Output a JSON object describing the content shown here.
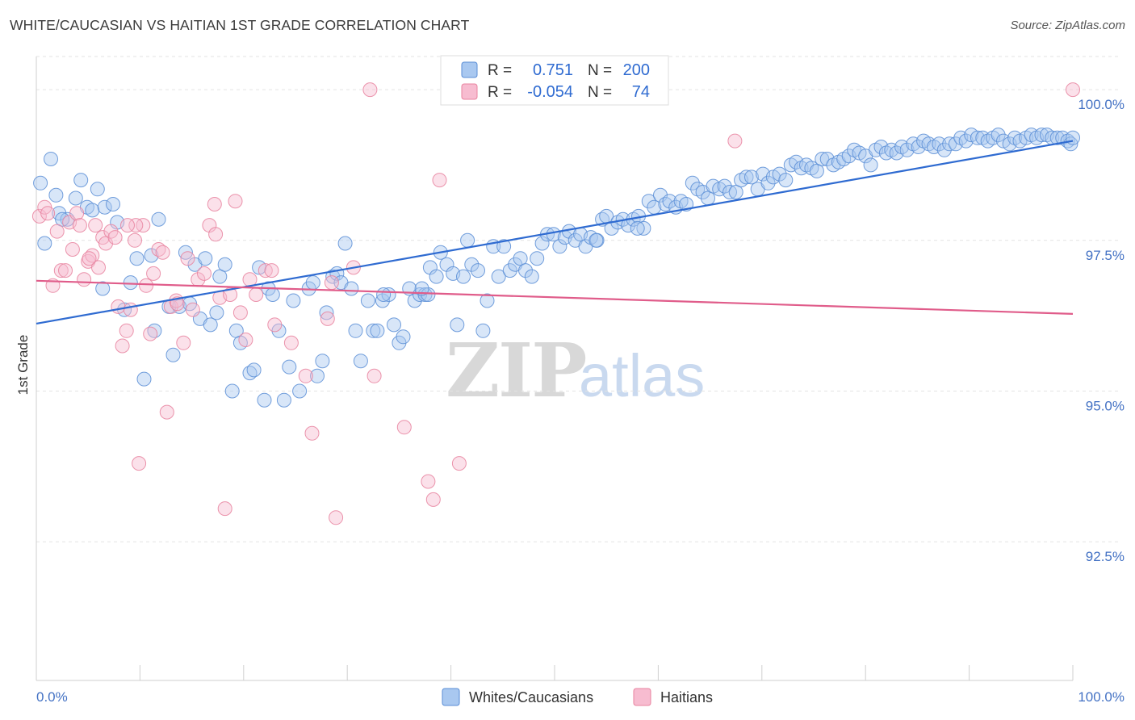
{
  "header": {
    "title": "WHITE/CAUCASIAN VS HAITIAN 1ST GRADE CORRELATION CHART",
    "source": "Source: ZipAtlas.com"
  },
  "watermark": {
    "zip": "ZIP",
    "atlas": "atlas"
  },
  "legend": {
    "rows": [
      {
        "r_label": "R =",
        "r_value": "0.751",
        "n_label": "N =",
        "n_value": "200"
      },
      {
        "r_label": "R =",
        "r_value": "-0.054",
        "n_label": "N =",
        "n_value": "74"
      }
    ]
  },
  "bottom_legend": {
    "series1": "Whites/Caucasians",
    "series2": "Haitians"
  },
  "chart_data": {
    "type": "scatter",
    "title": "WHITE/CAUCASIAN VS HAITIAN 1ST GRADE CORRELATION CHART",
    "xlabel": "",
    "ylabel": "1st Grade",
    "xlim": [
      0,
      100
    ],
    "ylim": [
      90.2,
      100.55
    ],
    "x_tick_labels": [
      "0.0%",
      "100.0%"
    ],
    "y_ticks": [
      92.5,
      95.0,
      97.5,
      100.0
    ],
    "y_tick_labels": [
      "92.5%",
      "95.0%",
      "97.5%",
      "100.0%"
    ],
    "grid": true,
    "legend_placement": "top-center",
    "colors": {
      "white_fill": "#a9c8f0",
      "white_stroke": "#5a8ed6",
      "white_line": "#2f6bd1",
      "haitian_fill": "#f7bcd0",
      "haitian_stroke": "#e8839f",
      "haitian_line": "#e05c8a"
    },
    "series": [
      {
        "name": "Whites/Caucasians",
        "r": 0.751,
        "n": 200,
        "trend": {
          "x": [
            0,
            100
          ],
          "y": [
            96.12,
            99.15
          ]
        },
        "points": [
          [
            0.4,
            98.45
          ],
          [
            1.4,
            98.85
          ],
          [
            1.9,
            98.25
          ],
          [
            2.2,
            97.95
          ],
          [
            3.0,
            97.85
          ],
          [
            3.8,
            98.2
          ],
          [
            4.3,
            98.5
          ],
          [
            4.9,
            98.05
          ],
          [
            5.4,
            98.0
          ],
          [
            5.9,
            98.35
          ],
          [
            0.8,
            97.45
          ],
          [
            2.5,
            97.85
          ],
          [
            6.6,
            98.05
          ],
          [
            7.4,
            98.1
          ],
          [
            7.8,
            97.8
          ],
          [
            11.8,
            97.85
          ],
          [
            6.4,
            96.7
          ],
          [
            8.5,
            96.35
          ],
          [
            9.1,
            96.8
          ],
          [
            9.7,
            97.2
          ],
          [
            10.4,
            95.2
          ],
          [
            11.1,
            97.25
          ],
          [
            11.4,
            96.0
          ],
          [
            12.8,
            96.4
          ],
          [
            13.2,
            95.6
          ],
          [
            13.8,
            96.4
          ],
          [
            14.4,
            97.3
          ],
          [
            14.8,
            96.45
          ],
          [
            15.3,
            97.1
          ],
          [
            15.8,
            96.2
          ],
          [
            16.3,
            97.2
          ],
          [
            16.8,
            96.1
          ],
          [
            17.4,
            96.3
          ],
          [
            17.7,
            96.9
          ],
          [
            18.2,
            97.1
          ],
          [
            18.9,
            95.0
          ],
          [
            19.3,
            96.0
          ],
          [
            19.7,
            95.8
          ],
          [
            20.6,
            95.3
          ],
          [
            21.0,
            95.35
          ],
          [
            21.5,
            97.05
          ],
          [
            22.0,
            94.85
          ],
          [
            22.4,
            96.7
          ],
          [
            22.8,
            96.6
          ],
          [
            23.4,
            96.0
          ],
          [
            23.9,
            94.85
          ],
          [
            24.4,
            95.4
          ],
          [
            24.8,
            96.5
          ],
          [
            25.4,
            95.0
          ],
          [
            26.3,
            96.7
          ],
          [
            26.7,
            96.8
          ],
          [
            27.1,
            95.25
          ],
          [
            27.6,
            95.5
          ],
          [
            28.0,
            96.3
          ],
          [
            28.6,
            96.9
          ],
          [
            29.0,
            96.95
          ],
          [
            29.4,
            96.8
          ],
          [
            29.8,
            97.45
          ],
          [
            30.4,
            96.7
          ],
          [
            30.8,
            96.0
          ],
          [
            31.3,
            95.5
          ],
          [
            32.0,
            96.5
          ],
          [
            32.5,
            96.0
          ],
          [
            32.9,
            96.0
          ],
          [
            33.4,
            96.5
          ],
          [
            34.0,
            96.6
          ],
          [
            34.5,
            96.1
          ],
          [
            35.0,
            95.8
          ],
          [
            35.4,
            95.9
          ],
          [
            36.0,
            96.7
          ],
          [
            36.5,
            96.5
          ],
          [
            37.0,
            96.6
          ],
          [
            37.5,
            96.6
          ],
          [
            38.0,
            97.05
          ],
          [
            38.6,
            96.9
          ],
          [
            39.0,
            97.3
          ],
          [
            39.6,
            97.1
          ],
          [
            40.2,
            96.95
          ],
          [
            40.6,
            96.1
          ],
          [
            41.2,
            96.9
          ],
          [
            41.6,
            97.5
          ],
          [
            42.0,
            97.1
          ],
          [
            42.6,
            97.0
          ],
          [
            43.1,
            96.0
          ],
          [
            43.5,
            96.5
          ],
          [
            44.1,
            97.4
          ],
          [
            44.6,
            96.9
          ],
          [
            45.1,
            97.4
          ],
          [
            45.7,
            97.0
          ],
          [
            46.2,
            97.1
          ],
          [
            46.7,
            97.2
          ],
          [
            47.2,
            97.0
          ],
          [
            47.8,
            96.9
          ],
          [
            48.3,
            97.2
          ],
          [
            48.8,
            97.45
          ],
          [
            49.3,
            97.6
          ],
          [
            49.9,
            97.6
          ],
          [
            50.5,
            97.4
          ],
          [
            51.0,
            97.55
          ],
          [
            51.4,
            97.65
          ],
          [
            52.0,
            97.5
          ],
          [
            52.5,
            97.6
          ],
          [
            53.0,
            97.4
          ],
          [
            53.5,
            97.55
          ],
          [
            54.1,
            97.5
          ],
          [
            54.6,
            97.85
          ],
          [
            55.0,
            97.9
          ],
          [
            55.5,
            97.7
          ],
          [
            56.1,
            97.8
          ],
          [
            56.6,
            97.85
          ],
          [
            57.1,
            97.75
          ],
          [
            57.6,
            97.85
          ],
          [
            58.1,
            97.9
          ],
          [
            58.6,
            97.7
          ],
          [
            59.1,
            98.15
          ],
          [
            59.6,
            98.05
          ],
          [
            60.2,
            98.25
          ],
          [
            60.7,
            98.1
          ],
          [
            61.1,
            98.15
          ],
          [
            61.7,
            98.05
          ],
          [
            62.2,
            98.15
          ],
          [
            62.7,
            98.1
          ],
          [
            63.3,
            98.45
          ],
          [
            63.8,
            98.35
          ],
          [
            64.3,
            98.3
          ],
          [
            64.8,
            98.2
          ],
          [
            65.3,
            98.4
          ],
          [
            65.9,
            98.35
          ],
          [
            66.4,
            98.4
          ],
          [
            66.9,
            98.3
          ],
          [
            67.5,
            98.3
          ],
          [
            68.0,
            98.5
          ],
          [
            68.5,
            98.55
          ],
          [
            69.0,
            98.55
          ],
          [
            69.6,
            98.35
          ],
          [
            70.1,
            98.6
          ],
          [
            70.6,
            98.45
          ],
          [
            71.1,
            98.55
          ],
          [
            71.7,
            98.6
          ],
          [
            72.3,
            98.5
          ],
          [
            72.8,
            98.75
          ],
          [
            73.3,
            98.8
          ],
          [
            73.8,
            98.7
          ],
          [
            74.3,
            98.75
          ],
          [
            74.8,
            98.7
          ],
          [
            75.3,
            98.65
          ],
          [
            75.8,
            98.85
          ],
          [
            76.3,
            98.85
          ],
          [
            76.9,
            98.75
          ],
          [
            77.4,
            98.8
          ],
          [
            77.9,
            98.85
          ],
          [
            78.4,
            98.9
          ],
          [
            78.9,
            99.0
          ],
          [
            79.4,
            98.95
          ],
          [
            80.0,
            98.9
          ],
          [
            80.5,
            98.75
          ],
          [
            81.0,
            99.0
          ],
          [
            81.5,
            99.05
          ],
          [
            82.0,
            98.95
          ],
          [
            82.5,
            99.0
          ],
          [
            83.0,
            98.95
          ],
          [
            83.5,
            99.05
          ],
          [
            84.0,
            99.0
          ],
          [
            84.6,
            99.1
          ],
          [
            85.1,
            99.05
          ],
          [
            85.6,
            99.15
          ],
          [
            86.1,
            99.1
          ],
          [
            86.6,
            99.05
          ],
          [
            87.1,
            99.1
          ],
          [
            87.6,
            99.0
          ],
          [
            88.1,
            99.1
          ],
          [
            88.7,
            99.1
          ],
          [
            89.2,
            99.2
          ],
          [
            89.7,
            99.15
          ],
          [
            90.2,
            99.25
          ],
          [
            90.8,
            99.2
          ],
          [
            91.3,
            99.2
          ],
          [
            91.8,
            99.15
          ],
          [
            92.3,
            99.2
          ],
          [
            92.8,
            99.25
          ],
          [
            93.3,
            99.15
          ],
          [
            93.9,
            99.1
          ],
          [
            94.4,
            99.2
          ],
          [
            94.9,
            99.15
          ],
          [
            95.5,
            99.2
          ],
          [
            96.0,
            99.25
          ],
          [
            96.5,
            99.2
          ],
          [
            97.0,
            99.25
          ],
          [
            97.5,
            99.25
          ],
          [
            98.0,
            99.2
          ],
          [
            98.5,
            99.2
          ],
          [
            99.0,
            99.2
          ],
          [
            99.5,
            99.15
          ],
          [
            99.8,
            99.1
          ],
          [
            100.0,
            99.2
          ],
          [
            58.0,
            97.7
          ],
          [
            54.0,
            97.5
          ],
          [
            37.8,
            96.6
          ],
          [
            37.2,
            96.7
          ],
          [
            33.5,
            96.6
          ]
        ]
      },
      {
        "name": "Haitians",
        "r": -0.054,
        "n": 74,
        "trend": {
          "x": [
            0,
            100
          ],
          "y": [
            96.83,
            96.28
          ]
        },
        "points": [
          [
            0.3,
            97.9
          ],
          [
            0.8,
            98.05
          ],
          [
            1.1,
            97.95
          ],
          [
            1.6,
            96.75
          ],
          [
            2.0,
            97.65
          ],
          [
            2.4,
            97.0
          ],
          [
            2.8,
            97.0
          ],
          [
            3.2,
            97.8
          ],
          [
            3.5,
            97.35
          ],
          [
            3.9,
            97.95
          ],
          [
            4.2,
            97.75
          ],
          [
            4.6,
            96.85
          ],
          [
            5.0,
            97.15
          ],
          [
            5.4,
            97.25
          ],
          [
            5.7,
            97.75
          ],
          [
            6.0,
            97.05
          ],
          [
            6.4,
            97.55
          ],
          [
            6.7,
            97.45
          ],
          [
            7.2,
            97.65
          ],
          [
            7.6,
            97.55
          ],
          [
            7.9,
            96.4
          ],
          [
            8.3,
            95.75
          ],
          [
            8.7,
            96.0
          ],
          [
            9.1,
            96.35
          ],
          [
            9.5,
            97.5
          ],
          [
            9.9,
            93.8
          ],
          [
            10.3,
            97.75
          ],
          [
            10.6,
            96.75
          ],
          [
            11.0,
            95.95
          ],
          [
            11.3,
            96.95
          ],
          [
            11.8,
            97.35
          ],
          [
            12.2,
            97.3
          ],
          [
            12.6,
            94.65
          ],
          [
            13.0,
            96.4
          ],
          [
            13.5,
            96.5
          ],
          [
            14.2,
            95.8
          ],
          [
            14.6,
            97.2
          ],
          [
            15.1,
            96.35
          ],
          [
            15.6,
            96.85
          ],
          [
            16.2,
            96.95
          ],
          [
            16.7,
            97.75
          ],
          [
            17.3,
            97.6
          ],
          [
            17.7,
            96.55
          ],
          [
            18.2,
            93.05
          ],
          [
            18.7,
            96.6
          ],
          [
            19.2,
            98.15
          ],
          [
            19.7,
            96.3
          ],
          [
            20.2,
            95.85
          ],
          [
            20.6,
            96.85
          ],
          [
            21.2,
            96.6
          ],
          [
            22.1,
            97.0
          ],
          [
            22.7,
            97.0
          ],
          [
            23.0,
            96.1
          ],
          [
            24.6,
            95.8
          ],
          [
            26.0,
            95.25
          ],
          [
            26.6,
            94.3
          ],
          [
            28.1,
            96.2
          ],
          [
            28.5,
            96.8
          ],
          [
            28.9,
            92.9
          ],
          [
            30.6,
            97.05
          ],
          [
            32.2,
            100.0
          ],
          [
            32.6,
            95.25
          ],
          [
            35.5,
            94.4
          ],
          [
            37.8,
            93.5
          ],
          [
            38.3,
            93.2
          ],
          [
            38.9,
            98.5
          ],
          [
            40.8,
            93.8
          ],
          [
            67.4,
            99.15
          ],
          [
            100.0,
            100.0
          ],
          [
            17.2,
            98.1
          ],
          [
            9.6,
            97.75
          ],
          [
            5.1,
            97.2
          ],
          [
            13.6,
            96.45
          ],
          [
            8.8,
            97.75
          ]
        ]
      }
    ]
  }
}
